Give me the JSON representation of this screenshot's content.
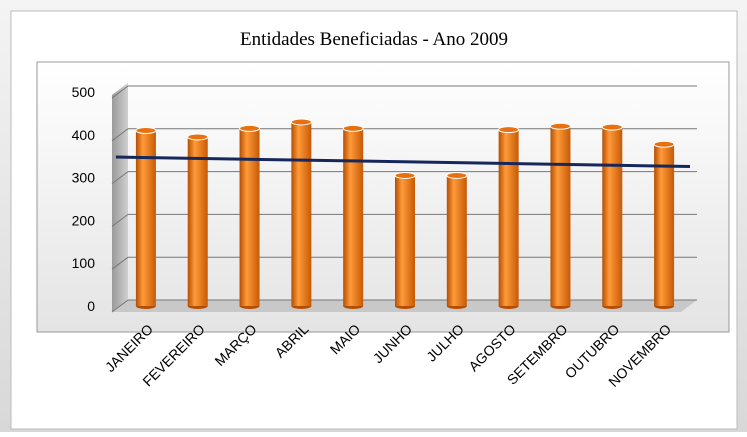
{
  "chart_data": {
    "type": "bar",
    "title": "Entidades Beneficiadas - Ano 2009",
    "categories": [
      "JANEIRO",
      "FEVEREIRO",
      "MARÇO",
      "ABRIL",
      "MAIO",
      "JUNHO",
      "JULHO",
      "AGOSTO",
      "SETEMBRO",
      "OUTUBRO",
      "NOVEMBRO"
    ],
    "values": [
      410,
      395,
      415,
      430,
      415,
      305,
      305,
      412,
      420,
      418,
      378
    ],
    "color": "#e8700e",
    "ylim": [
      0,
      500
    ],
    "yticks": [
      0,
      100,
      200,
      300,
      400,
      500
    ],
    "grid": true,
    "trendline": {
      "color": "#16275c",
      "values": [
        348,
        326
      ]
    }
  }
}
